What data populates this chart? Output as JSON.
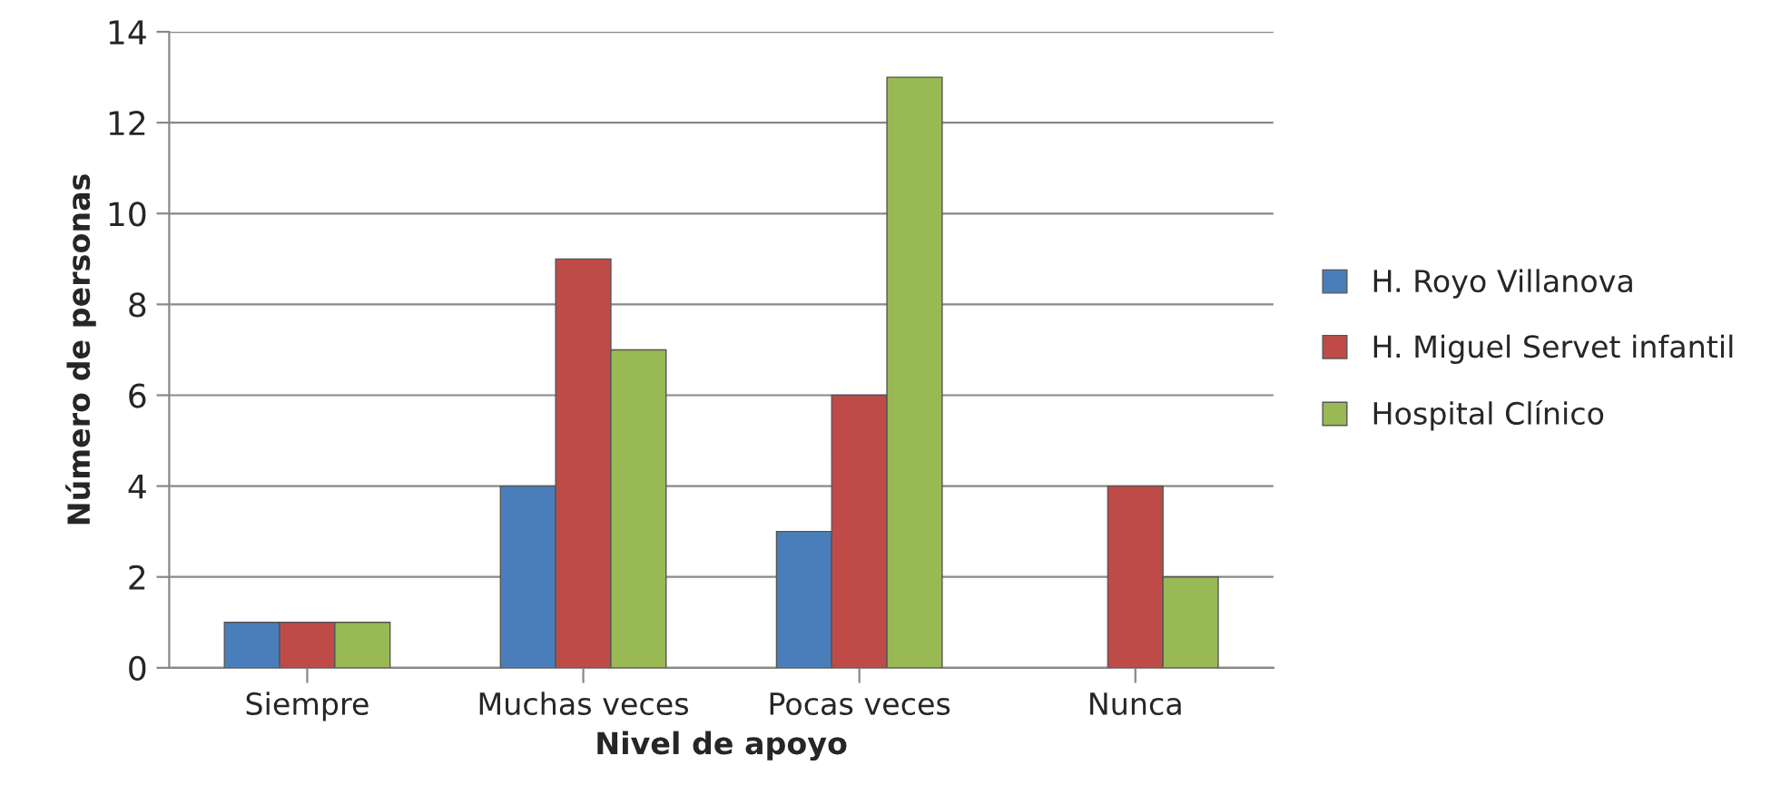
{
  "chart_data": {
    "type": "bar",
    "xlabel": "Nivel de apoyo",
    "ylabel": "Número de personas",
    "categories": [
      "Siempre",
      "Muchas veces",
      "Pocas veces",
      "Nunca"
    ],
    "series": [
      {
        "name": "H. Royo Villanova",
        "color": "#4a7ebb",
        "values": [
          1,
          4,
          3,
          null
        ]
      },
      {
        "name": "H. Miguel Servet infantil",
        "color": "#be4b48",
        "values": [
          1,
          9,
          6,
          4
        ]
      },
      {
        "name": "Hospital Clínico",
        "color": "#98b954",
        "values": [
          1,
          7,
          13,
          2
        ]
      }
    ],
    "ylim": [
      0,
      14
    ],
    "yticks": [
      0,
      2,
      4,
      6,
      8,
      10,
      12,
      14
    ],
    "grid": "y",
    "legend": "right"
  }
}
